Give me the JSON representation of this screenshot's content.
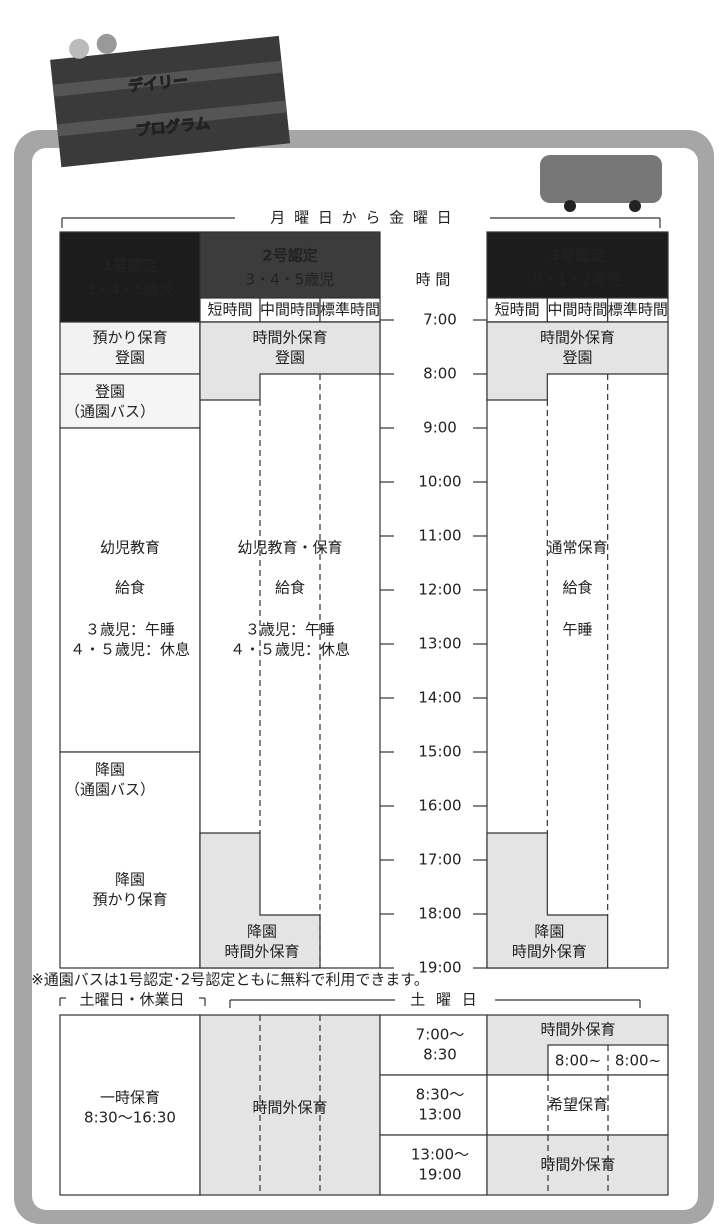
{
  "header": {
    "title_lines": [
      "デイリー",
      "プログラム"
    ]
  },
  "weekday": {
    "label": "月 曜 日 か ら 金 曜 日",
    "time_header": "時 間",
    "columns": [
      {
        "title": "1号認定",
        "subtitle": "3・4・5歳児"
      },
      {
        "title": "2号認定",
        "subtitle": "3・4・5歳児",
        "sub_columns": [
          "短時間",
          "中間時間",
          "標準時間"
        ]
      },
      {
        "title": "3号認定",
        "subtitle": "0・1・2歳児",
        "sub_columns": [
          "短時間",
          "中間時間",
          "標準時間"
        ]
      }
    ],
    "times": [
      "7:00",
      "8:00",
      "9:00",
      "10:00",
      "11:00",
      "12:00",
      "13:00",
      "14:00",
      "15:00",
      "16:00",
      "17:00",
      "18:00",
      "19:00"
    ],
    "col1": [
      [
        "預かり保育",
        "登園"
      ],
      [
        "登園",
        "（通園バス）"
      ],
      [
        "幼児教育"
      ],
      [
        "給食"
      ],
      [
        "３歳児：午睡",
        "４・５歳児：休息"
      ],
      [
        "降園",
        "（通園バス）"
      ],
      [
        "降園",
        "預かり保育"
      ]
    ],
    "col2": [
      [
        "時間外保育",
        "登園"
      ],
      [
        "幼児教育・保育"
      ],
      [
        "給食"
      ],
      [
        "３歳児：午睡",
        "４・５歳児：休息"
      ],
      [
        "降園",
        "時間外保育"
      ]
    ],
    "col3": [
      [
        "時間外保育",
        "登園"
      ],
      [
        "通常保育"
      ],
      [
        "給食"
      ],
      [
        "午睡"
      ],
      [
        "降園",
        "時間外保育"
      ]
    ]
  },
  "footnote": "※通園バスは1号認定･2号認定ともに無料で利用できます。",
  "holiday": {
    "label": "土曜日・休業日",
    "saturday_label": "土 曜 日",
    "col1": [
      "一時保育",
      "8:30〜16:30"
    ],
    "col2": "時間外保育",
    "rows": [
      {
        "time": [
          "7:00〜",
          "8:30"
        ],
        "care": "時間外保育",
        "extra": [
          "8:00~",
          "8:00~"
        ]
      },
      {
        "time": [
          "8:30〜",
          "13:00"
        ],
        "care": "希望保育"
      },
      {
        "time": [
          "13:00〜",
          "19:00"
        ],
        "care": "時間外保育"
      }
    ]
  }
}
